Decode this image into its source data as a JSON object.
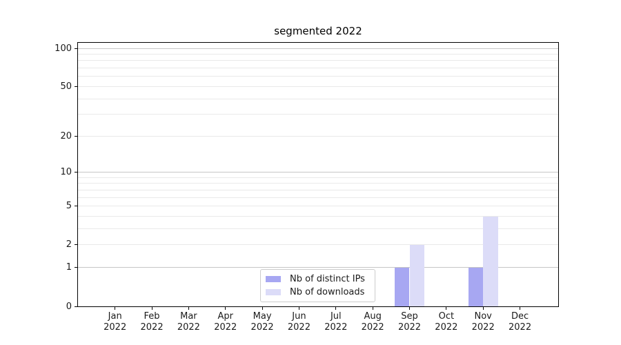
{
  "chart_data": {
    "type": "bar",
    "title": "segmented 2022",
    "categories": [
      "Jan 2022",
      "Feb 2022",
      "Mar 2022",
      "Apr 2022",
      "May 2022",
      "Jun 2022",
      "Jul 2022",
      "Aug 2022",
      "Sep 2022",
      "Oct 2022",
      "Nov 2022",
      "Dec 2022"
    ],
    "series": [
      {
        "name": "Nb of distinct IPs",
        "color": "#a7a7f2",
        "values": [
          0,
          0,
          0,
          0,
          0,
          0,
          0,
          0,
          1,
          0,
          1,
          0
        ]
      },
      {
        "name": "Nb of downloads",
        "color": "#dcdcf8",
        "values": [
          0,
          0,
          0,
          0,
          0,
          0,
          0,
          0,
          2,
          0,
          4,
          0
        ]
      }
    ],
    "y_axis": {
      "scale": "log1p",
      "ylim": [
        0,
        112
      ],
      "ticks": [
        0,
        1,
        2,
        5,
        10,
        20,
        50,
        100
      ],
      "major_gridlines": [
        1,
        10,
        100
      ],
      "minor_gridlines": [
        2,
        3,
        4,
        5,
        6,
        7,
        8,
        9,
        20,
        30,
        40,
        50,
        60,
        70,
        80,
        90
      ]
    },
    "legend": {
      "position": "lower center"
    },
    "grid": true
  },
  "colors": {
    "background": "#ffffff",
    "spine": "#000000",
    "text": "#1a1a1a",
    "grid_major": "#c6c6c6",
    "grid_minor": "#e9e9e9",
    "legend_border": "#cccccc"
  }
}
